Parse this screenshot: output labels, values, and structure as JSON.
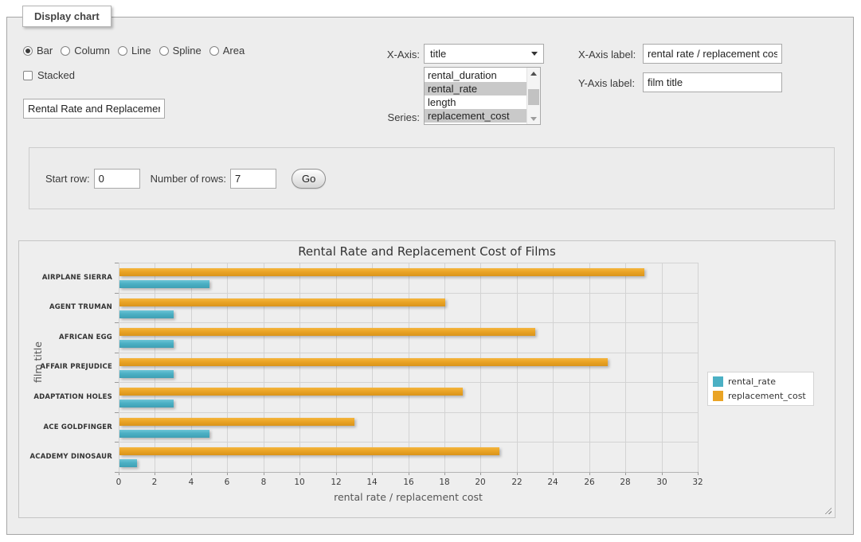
{
  "fieldset": {
    "legend": "Display chart"
  },
  "chart_type": {
    "options": [
      "Bar",
      "Column",
      "Line",
      "Spline",
      "Area"
    ],
    "selected": "Bar"
  },
  "stacked": {
    "label": "Stacked",
    "checked": false
  },
  "chart_title_input": {
    "value": "Rental Rate and Replacemer"
  },
  "x_axis_select": {
    "label": "X-Axis:",
    "value": "title"
  },
  "series_list": {
    "label": "Series:",
    "options": [
      {
        "name": "rental_duration",
        "selected": false
      },
      {
        "name": "rental_rate",
        "selected": true
      },
      {
        "name": "length",
        "selected": false
      },
      {
        "name": "replacement_cost",
        "selected": true
      }
    ]
  },
  "x_axis_label_field": {
    "label": "X-Axis label:",
    "value": "rental rate / replacement cost"
  },
  "y_axis_label_field": {
    "label": "Y-Axis label:",
    "value": "film title"
  },
  "row_controls": {
    "start_row_label": "Start row:",
    "start_row_value": "0",
    "num_rows_label": "Number of rows:",
    "num_rows_value": "7",
    "go_label": "Go"
  },
  "chart_data": {
    "type": "bar",
    "title": "Rental Rate and Replacement Cost of Films",
    "categories": [
      "AIRPLANE SIERRA",
      "AGENT TRUMAN",
      "AFRICAN EGG",
      "AFFAIR PREJUDICE",
      "ADAPTATION HOLES",
      "ACE GOLDFINGER",
      "ACADEMY DINOSAUR"
    ],
    "series": [
      {
        "name": "rental_rate",
        "color": "#4bb0c4",
        "css_class": "s-teal",
        "values": [
          4.99,
          2.99,
          2.99,
          2.99,
          2.99,
          4.99,
          0.99
        ]
      },
      {
        "name": "replacement_cost",
        "color": "#eaa425",
        "css_class": "s-orange",
        "values": [
          28.99,
          17.99,
          22.99,
          26.99,
          18.99,
          12.99,
          20.99
        ]
      }
    ],
    "group_order_top_to_bottom": [
      "replacement_cost",
      "rental_rate"
    ],
    "xlabel": "rental rate / replacement cost",
    "ylabel": "film title",
    "xlim": [
      0,
      32
    ],
    "xticks": [
      0,
      2,
      4,
      6,
      8,
      10,
      12,
      14,
      16,
      18,
      20,
      22,
      24,
      26,
      28,
      30,
      32
    ],
    "grid": true,
    "legend_position": "right"
  }
}
